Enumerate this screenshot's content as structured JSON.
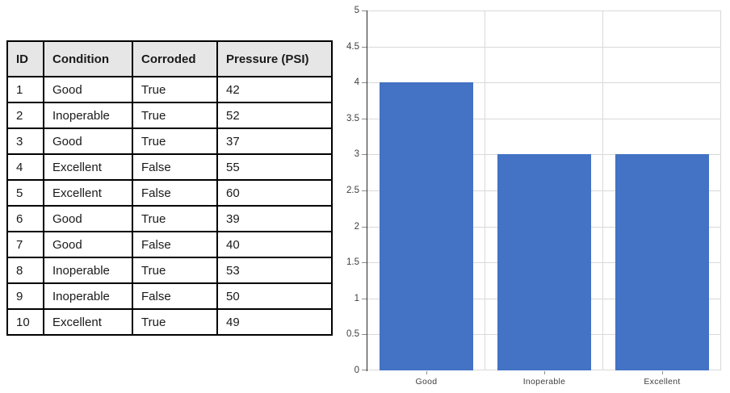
{
  "table": {
    "columns": [
      "ID",
      "Condition",
      "Corroded",
      "Pressure (PSI)"
    ],
    "rows": [
      [
        "1",
        "Good",
        "True",
        "42"
      ],
      [
        "2",
        "Inoperable",
        "True",
        "52"
      ],
      [
        "3",
        "Good",
        "True",
        "37"
      ],
      [
        "4",
        "Excellent",
        "False",
        "55"
      ],
      [
        "5",
        "Excellent",
        "False",
        "60"
      ],
      [
        "6",
        "Good",
        "True",
        "39"
      ],
      [
        "7",
        "Good",
        "False",
        "40"
      ],
      [
        "8",
        "Inoperable",
        "True",
        "53"
      ],
      [
        "9",
        "Inoperable",
        "False",
        "50"
      ],
      [
        "10",
        "Excellent",
        "True",
        "49"
      ]
    ]
  },
  "chart_data": {
    "type": "bar",
    "categories": [
      "Good",
      "Inoperable",
      "Excellent"
    ],
    "values": [
      4,
      3,
      3
    ],
    "title": "",
    "xlabel": "",
    "ylabel": "",
    "ylim": [
      0,
      5
    ],
    "ytick_step": 0.5,
    "grid": true,
    "legend": "none",
    "bar_color": "#4472C4",
    "grid_color": "#D9D9D9",
    "axis_color": "#262626",
    "tick_color": "#8C8C8C",
    "label_color": "#404040"
  }
}
